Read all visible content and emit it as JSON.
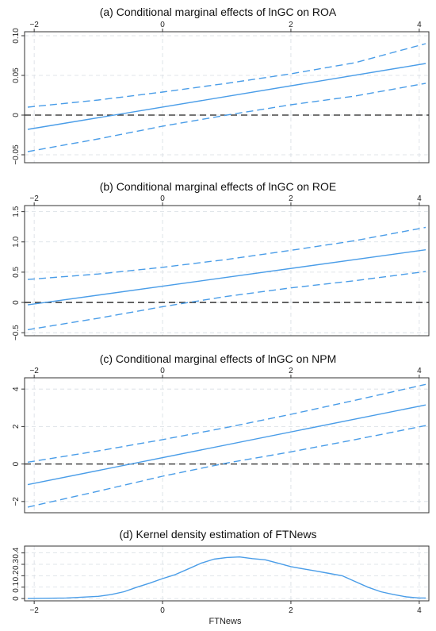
{
  "chart_data": [
    {
      "type": "line",
      "title": "(a) Conditional marginal effects of lnGC on ROA",
      "xlim": [
        -2.15,
        4.15
      ],
      "ylim": [
        -0.06,
        0.105
      ],
      "xticks": [
        -2,
        0,
        2,
        4
      ],
      "xtick_labels": [
        "−2",
        "0",
        "2",
        "4"
      ],
      "yticks": [
        -0.05,
        0,
        0.05,
        0.1
      ],
      "ytick_labels": [
        "−0.05",
        "0",
        "0.05",
        "0.10"
      ],
      "grid": true,
      "reference_line": 0,
      "series": [
        {
          "role": "estimate",
          "style": "solid",
          "x": [
            -2.1,
            4.1
          ],
          "y": [
            -0.018,
            0.065
          ]
        },
        {
          "role": "upper_ci",
          "style": "dashed",
          "x": [
            -2.1,
            -1.0,
            0.0,
            1.0,
            2.0,
            3.0,
            4.1
          ],
          "y": [
            0.01,
            0.019,
            0.029,
            0.04,
            0.052,
            0.066,
            0.09
          ]
        },
        {
          "role": "lower_ci",
          "style": "dashed",
          "x": [
            -2.1,
            -1.0,
            0.0,
            1.0,
            2.0,
            3.0,
            4.1
          ],
          "y": [
            -0.046,
            -0.03,
            -0.014,
            0.0,
            0.013,
            0.024,
            0.04
          ]
        }
      ]
    },
    {
      "type": "line",
      "title": "(b) Conditional marginal effects of lnGC on ROE",
      "xlim": [
        -2.15,
        4.15
      ],
      "ylim": [
        -0.55,
        1.6
      ],
      "xticks": [
        -2,
        0,
        2,
        4
      ],
      "xtick_labels": [
        "−2",
        "0",
        "2",
        "4"
      ],
      "yticks": [
        -0.5,
        0,
        0.5,
        1,
        1.5
      ],
      "ytick_labels": [
        "−0.5",
        "0",
        "0.5",
        "1.0",
        "1.5"
      ],
      "grid": true,
      "reference_line": 0,
      "series": [
        {
          "role": "estimate",
          "style": "solid",
          "x": [
            -2.1,
            4.1
          ],
          "y": [
            -0.04,
            0.87
          ]
        },
        {
          "role": "upper_ci",
          "style": "dashed",
          "x": [
            -2.1,
            -1.0,
            0.0,
            1.0,
            2.0,
            3.0,
            4.1
          ],
          "y": [
            0.38,
            0.47,
            0.58,
            0.71,
            0.86,
            1.02,
            1.24
          ]
        },
        {
          "role": "lower_ci",
          "style": "dashed",
          "x": [
            -2.1,
            -1.0,
            0.0,
            1.0,
            2.0,
            3.0,
            4.1
          ],
          "y": [
            -0.45,
            -0.26,
            -0.07,
            0.1,
            0.24,
            0.36,
            0.51
          ]
        }
      ]
    },
    {
      "type": "line",
      "title": "(c) Conditional marginal effects of lnGC on NPM",
      "xlim": [
        -2.15,
        4.15
      ],
      "ylim": [
        -2.6,
        4.6
      ],
      "xticks": [
        -2,
        0,
        2,
        4
      ],
      "xtick_labels": [
        "−2",
        "0",
        "2",
        "4"
      ],
      "yticks": [
        -2,
        0,
        2,
        4
      ],
      "ytick_labels": [
        "−2",
        "0",
        "2",
        "4"
      ],
      "grid": true,
      "reference_line": 0,
      "series": [
        {
          "role": "estimate",
          "style": "solid",
          "x": [
            -2.1,
            4.1
          ],
          "y": [
            -1.1,
            3.15
          ]
        },
        {
          "role": "upper_ci",
          "style": "dashed",
          "x": [
            -2.1,
            -1.0,
            0.0,
            1.0,
            2.0,
            3.0,
            4.1
          ],
          "y": [
            0.1,
            0.7,
            1.3,
            1.95,
            2.65,
            3.4,
            4.25
          ]
        },
        {
          "role": "lower_ci",
          "style": "dashed",
          "x": [
            -2.1,
            -1.0,
            0.0,
            1.0,
            2.0,
            3.0,
            4.1
          ],
          "y": [
            -2.3,
            -1.45,
            -0.65,
            0.05,
            0.65,
            1.3,
            2.05
          ]
        }
      ]
    },
    {
      "type": "area",
      "title": "(d) Kernel density estimation of FTNews",
      "xlabel": "FTNews",
      "xlim": [
        -2.15,
        4.15
      ],
      "ylim": [
        -0.02,
        0.46
      ],
      "xticks": [
        -2,
        0,
        2,
        4
      ],
      "xtick_labels": [
        "−2",
        "0",
        "2",
        "4"
      ],
      "yticks": [
        0,
        0.1,
        0.2,
        0.3,
        0.4
      ],
      "ytick_labels": [
        "0",
        "0.1",
        "0.2",
        "0.3",
        "0.4"
      ],
      "grid": true,
      "series": [
        {
          "role": "density",
          "style": "solid",
          "x": [
            -2.1,
            -1.5,
            -1.0,
            -0.8,
            -0.6,
            -0.4,
            -0.2,
            0.0,
            0.2,
            0.4,
            0.6,
            0.8,
            1.0,
            1.2,
            1.4,
            1.6,
            1.8,
            2.0,
            2.2,
            2.4,
            2.6,
            2.8,
            3.0,
            3.2,
            3.4,
            3.6,
            3.8,
            4.0,
            4.1
          ],
          "y": [
            0.0,
            0.005,
            0.02,
            0.035,
            0.06,
            0.1,
            0.135,
            0.175,
            0.21,
            0.26,
            0.31,
            0.345,
            0.36,
            0.365,
            0.35,
            0.34,
            0.31,
            0.28,
            0.26,
            0.24,
            0.22,
            0.2,
            0.15,
            0.1,
            0.06,
            0.035,
            0.015,
            0.005,
            0.005
          ]
        }
      ]
    }
  ],
  "style": {
    "line_color": "#4a9de8",
    "reference_line_color": "#222222",
    "axis_color": "#333333",
    "grid_color": "#d7dde3"
  }
}
